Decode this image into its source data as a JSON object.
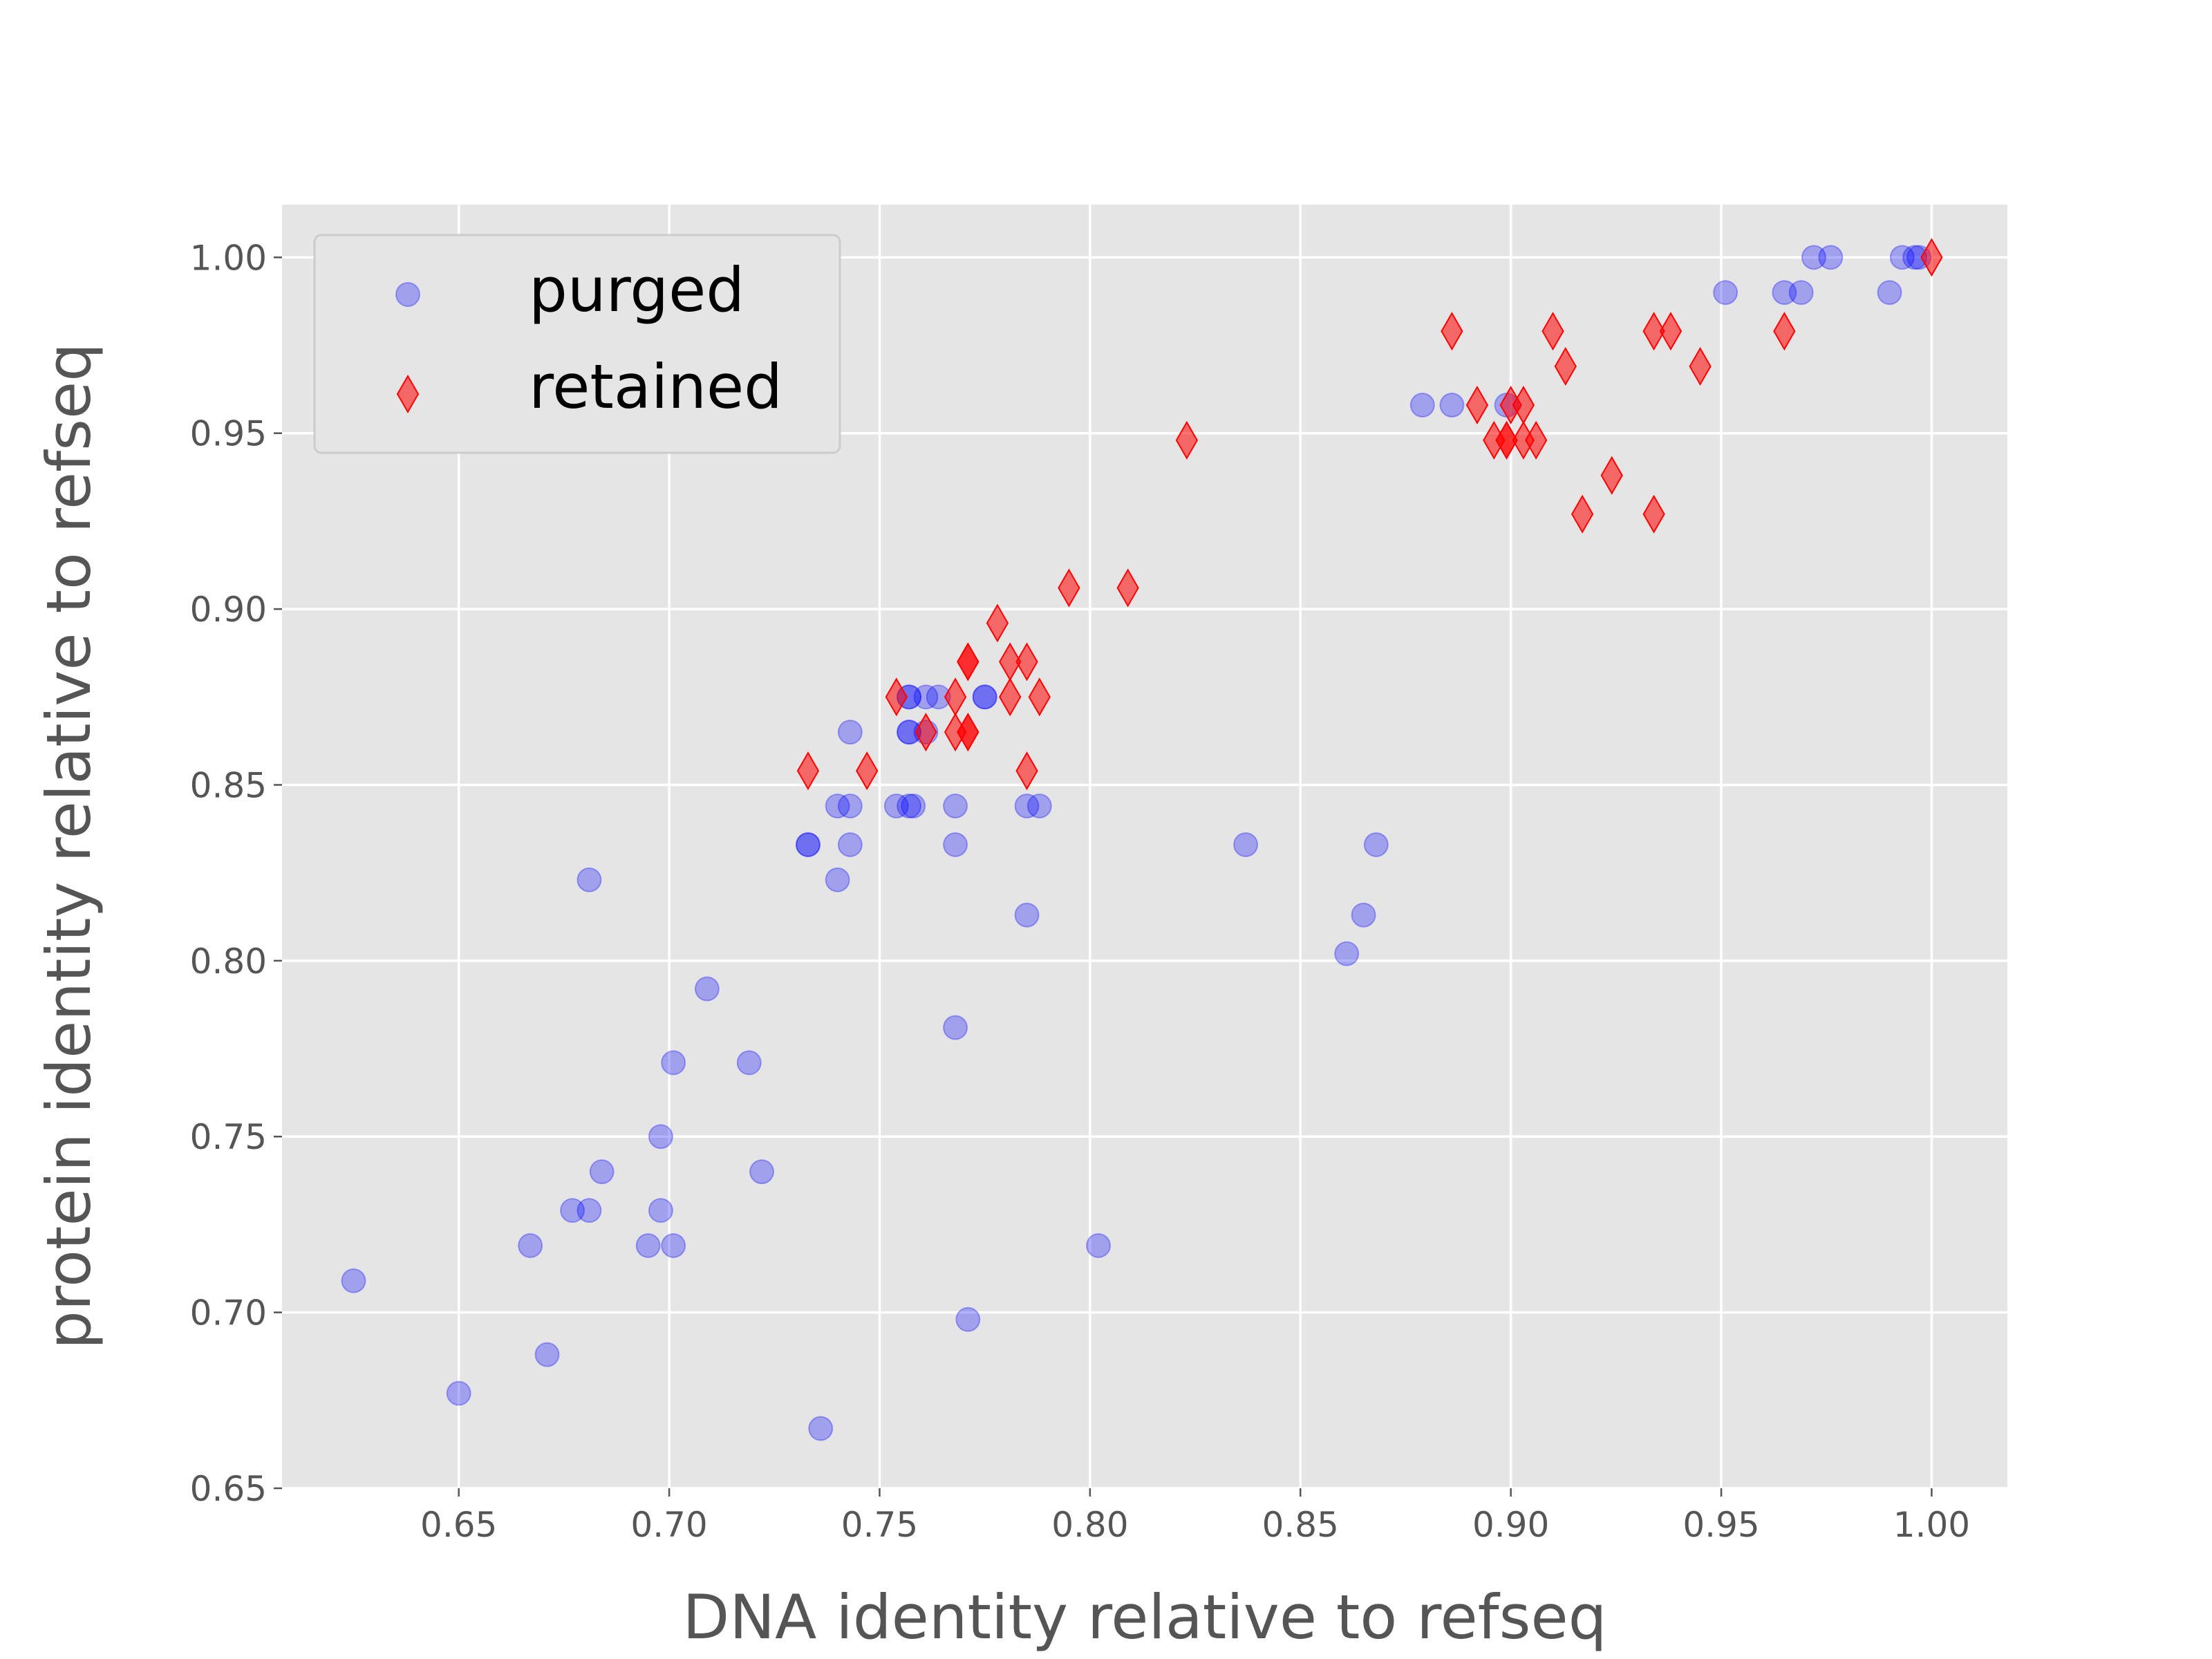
{
  "chart_data": {
    "type": "scatter",
    "title": "",
    "xlabel": "DNA identity relative to refseq",
    "ylabel": "protein identity relative to refseq",
    "xlim": [
      0.608,
      1.018
    ],
    "ylim": [
      0.65,
      1.015
    ],
    "xticks": [
      "0.65",
      "0.70",
      "0.75",
      "0.80",
      "0.85",
      "0.90",
      "0.95",
      "1.00"
    ],
    "yticks": [
      "0.65",
      "0.70",
      "0.75",
      "0.80",
      "0.85",
      "0.90",
      "0.95",
      "1.00"
    ],
    "grid": true,
    "legend": "upper-left",
    "series": [
      {
        "name": "purged",
        "marker": "circle",
        "color": "#0000ff",
        "points": [
          [
            0.625,
            0.709
          ],
          [
            0.65,
            0.677
          ],
          [
            0.667,
            0.719
          ],
          [
            0.671,
            0.688
          ],
          [
            0.677,
            0.729
          ],
          [
            0.681,
            0.729
          ],
          [
            0.681,
            0.823
          ],
          [
            0.684,
            0.74
          ],
          [
            0.695,
            0.719
          ],
          [
            0.698,
            0.75
          ],
          [
            0.698,
            0.729
          ],
          [
            0.701,
            0.771
          ],
          [
            0.701,
            0.719
          ],
          [
            0.709,
            0.792
          ],
          [
            0.719,
            0.771
          ],
          [
            0.722,
            0.74
          ],
          [
            0.733,
            0.833
          ],
          [
            0.733,
            0.833
          ],
          [
            0.736,
            0.667
          ],
          [
            0.74,
            0.844
          ],
          [
            0.74,
            0.823
          ],
          [
            0.743,
            0.865
          ],
          [
            0.743,
            0.844
          ],
          [
            0.743,
            0.833
          ],
          [
            0.754,
            0.844
          ],
          [
            0.757,
            0.875
          ],
          [
            0.757,
            0.865
          ],
          [
            0.757,
            0.844
          ],
          [
            0.757,
            0.875
          ],
          [
            0.757,
            0.865
          ],
          [
            0.758,
            0.844
          ],
          [
            0.761,
            0.875
          ],
          [
            0.761,
            0.865
          ],
          [
            0.764,
            0.875
          ],
          [
            0.768,
            0.844
          ],
          [
            0.768,
            0.833
          ],
          [
            0.768,
            0.781
          ],
          [
            0.771,
            0.698
          ],
          [
            0.775,
            0.875
          ],
          [
            0.775,
            0.875
          ],
          [
            0.785,
            0.844
          ],
          [
            0.785,
            0.813
          ],
          [
            0.788,
            0.844
          ],
          [
            0.802,
            0.719
          ],
          [
            0.837,
            0.833
          ],
          [
            0.861,
            0.802
          ],
          [
            0.865,
            0.813
          ],
          [
            0.868,
            0.833
          ],
          [
            0.879,
            0.958
          ],
          [
            0.886,
            0.958
          ],
          [
            0.899,
            0.958
          ],
          [
            0.951,
            0.99
          ],
          [
            0.965,
            0.99
          ],
          [
            0.969,
            0.99
          ],
          [
            0.972,
            1.0
          ],
          [
            0.976,
            1.0
          ],
          [
            0.99,
            0.99
          ],
          [
            0.993,
            1.0
          ],
          [
            0.996,
            1.0
          ],
          [
            0.997,
            1.0
          ]
        ]
      },
      {
        "name": "retained",
        "marker": "diamond",
        "color": "#ff0000",
        "points": [
          [
            0.733,
            0.854
          ],
          [
            0.747,
            0.854
          ],
          [
            0.754,
            0.875
          ],
          [
            0.761,
            0.865
          ],
          [
            0.768,
            0.875
          ],
          [
            0.768,
            0.865
          ],
          [
            0.771,
            0.885
          ],
          [
            0.771,
            0.885
          ],
          [
            0.771,
            0.865
          ],
          [
            0.771,
            0.865
          ],
          [
            0.778,
            0.896
          ],
          [
            0.781,
            0.885
          ],
          [
            0.781,
            0.875
          ],
          [
            0.785,
            0.885
          ],
          [
            0.785,
            0.854
          ],
          [
            0.788,
            0.875
          ],
          [
            0.795,
            0.906
          ],
          [
            0.809,
            0.906
          ],
          [
            0.823,
            0.948
          ],
          [
            0.886,
            0.979
          ],
          [
            0.892,
            0.958
          ],
          [
            0.896,
            0.948
          ],
          [
            0.899,
            0.948
          ],
          [
            0.899,
            0.948
          ],
          [
            0.9,
            0.958
          ],
          [
            0.903,
            0.958
          ],
          [
            0.903,
            0.948
          ],
          [
            0.906,
            0.948
          ],
          [
            0.91,
            0.979
          ],
          [
            0.913,
            0.969
          ],
          [
            0.917,
            0.927
          ],
          [
            0.924,
            0.938
          ],
          [
            0.934,
            0.927
          ],
          [
            0.934,
            0.979
          ],
          [
            0.938,
            0.979
          ],
          [
            0.945,
            0.969
          ],
          [
            0.965,
            0.979
          ],
          [
            1.0,
            1.0
          ]
        ]
      }
    ]
  }
}
